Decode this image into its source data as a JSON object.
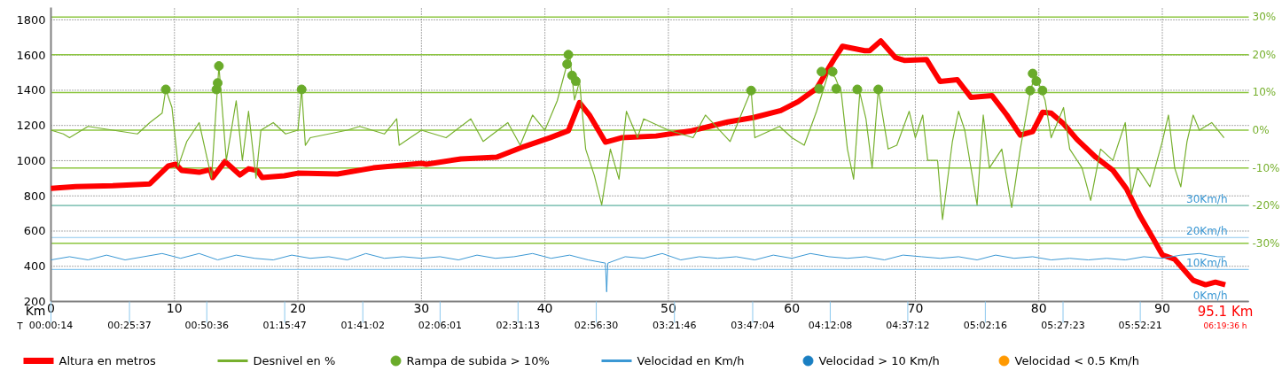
{
  "chart_data": {
    "type": "line",
    "xlabel": "Km",
    "x2label": "T",
    "xlim": [
      0,
      97
    ],
    "xticks": [
      0,
      10,
      20,
      30,
      40,
      50,
      60,
      70,
      80,
      90
    ],
    "x2lim": [
      0.0039,
      6.457
    ],
    "x2ticks": [
      {
        "value": 0.0039,
        "label": "00:00:14"
      },
      {
        "value": 0.4269,
        "label": "00:25:37"
      },
      {
        "value": 0.8433,
        "label": "00:50:36"
      },
      {
        "value": 1.2631,
        "label": "01:15:47"
      },
      {
        "value": 1.6839,
        "label": "01:41:02"
      },
      {
        "value": 2.1003,
        "label": "02:06:01"
      },
      {
        "value": 2.5203,
        "label": "02:31:13"
      },
      {
        "value": 2.9417,
        "label": "02:56:30"
      },
      {
        "value": 3.3628,
        "label": "03:21:46"
      },
      {
        "value": 3.7844,
        "label": "03:47:04"
      },
      {
        "value": 4.2022,
        "label": "04:12:08"
      },
      {
        "value": 4.62,
        "label": "04:37:12"
      },
      {
        "value": 5.0378,
        "label": "05:02:16"
      },
      {
        "value": 5.4564,
        "label": "05:27:23"
      },
      {
        "value": 5.8725,
        "label": "05:52:21"
      }
    ],
    "ylim": [
      200,
      1870
    ],
    "yticks": [
      200,
      400,
      600,
      800,
      1000,
      1200,
      1400,
      1600,
      1800
    ],
    "y2lim": [
      -45.4,
      32.5
    ],
    "y2ticks": [
      {
        "value": 30,
        "label": "30%"
      },
      {
        "value": 20,
        "label": "20%"
      },
      {
        "value": 10,
        "label": "10%"
      },
      {
        "value": 0,
        "label": "0%"
      },
      {
        "value": -10,
        "label": "-10%"
      },
      {
        "value": -20,
        "label": "-20%"
      },
      {
        "value": -30,
        "label": "-30%"
      }
    ],
    "y3lim": [
      0,
      91.9
    ],
    "y3ticks": [
      {
        "value": 0,
        "label": "0Km/h"
      },
      {
        "value": 10,
        "label": "10Km/h"
      },
      {
        "value": 20,
        "label": "20Km/h"
      },
      {
        "value": 30,
        "label": "30Km/h"
      }
    ],
    "grid": true,
    "legend": "bottom",
    "annotations": [
      "95.1 Km",
      "06:19:36 h"
    ],
    "series": [
      {
        "name": "Altura en metros",
        "axis": "y",
        "color": "#ff0000",
        "x": [
          0,
          2,
          5,
          8,
          9.5,
          10.1,
          10.6,
          12,
          12.9,
          13.1,
          14.1,
          15.3,
          16,
          16.7,
          17.1,
          18.9,
          20,
          23.2,
          26.1,
          30,
          30.4,
          33.2,
          36.1,
          38.3,
          40.4,
          41.9,
          42.8,
          43.6,
          44.9,
          46.2,
          49,
          51.9,
          54.8,
          56.9,
          59.1,
          60.5,
          62,
          63.4,
          64.1,
          65.9,
          66.3,
          67.2,
          68.4,
          69.1,
          70.9,
          72,
          73.4,
          74.5,
          76.2,
          77.4,
          78.5,
          79.5,
          80.3,
          81,
          82,
          83.1,
          84.6,
          86,
          87.1,
          88.2,
          89.2,
          90,
          91,
          92.5,
          93.5,
          94.3,
          95.1
        ],
        "values": [
          843,
          853,
          858,
          868,
          970,
          980,
          944,
          934,
          949,
          904,
          995,
          919,
          954,
          944,
          904,
          914,
          929,
          924,
          959,
          985,
          980,
          1010,
          1020,
          1080,
          1130,
          1170,
          1330,
          1260,
          1105,
          1130,
          1140,
          1170,
          1220,
          1245,
          1285,
          1335,
          1410,
          1575,
          1650,
          1625,
          1625,
          1680,
          1585,
          1570,
          1575,
          1450,
          1460,
          1360,
          1370,
          1260,
          1145,
          1165,
          1275,
          1270,
          1210,
          1120,
          1020,
          945,
          840,
          685,
          565,
          465,
          440,
          320,
          295,
          310,
          295
        ]
      },
      {
        "name": "Desnivel en %",
        "axis": "y2",
        "color": "#77b02e",
        "x": [
          0,
          1,
          1.5,
          3,
          5,
          7,
          8,
          9,
          9.3,
          9.8,
          10.3,
          11,
          12,
          13,
          13.6,
          14.2,
          15,
          15.5,
          16,
          16.6,
          17,
          18,
          19,
          20,
          20.3,
          20.6,
          21,
          24,
          25,
          27,
          28,
          28.2,
          30,
          32,
          34,
          35,
          37,
          38,
          39,
          40,
          41,
          42,
          42.4,
          42.8,
          43.3,
          44,
          44.6,
          45.3,
          46,
          46.6,
          47.5,
          48,
          50,
          52,
          53,
          55,
          56.7,
          57,
          59,
          60,
          61,
          62,
          63,
          63.5,
          64,
          64.5,
          65,
          65.5,
          66,
          66.5,
          67,
          67.8,
          68.5,
          69.5,
          70,
          70.6,
          71,
          71.8,
          72.2,
          73,
          73.5,
          74,
          75,
          75.5,
          76,
          77,
          77.8,
          78.5,
          79.3,
          79.7,
          80.5,
          81,
          82,
          82.5,
          83.5,
          84.2,
          85,
          86,
          87,
          87.5,
          88,
          89,
          90,
          90.5,
          91,
          91.5,
          92,
          92.5,
          93,
          94,
          95
        ],
        "values": [
          0,
          -1,
          -2,
          1,
          0,
          -1,
          2,
          4.5,
          10.8,
          6,
          -9.6,
          -3,
          2,
          -12.7,
          17,
          -8,
          7.8,
          -8,
          5,
          -12.7,
          0,
          2,
          -1,
          0,
          10.8,
          -4,
          -2,
          0,
          1,
          -1,
          3,
          -4,
          0,
          -2,
          3,
          -3,
          2,
          -4,
          4,
          0,
          7.8,
          20,
          8,
          13,
          -5,
          -12,
          -19.8,
          -5,
          -13,
          5,
          -2,
          3,
          0,
          -2,
          4,
          -3,
          10.5,
          -2,
          1,
          -2,
          -4,
          5,
          15.5,
          14,
          10,
          -5,
          -13,
          10,
          3,
          -10,
          10.8,
          -5,
          -4,
          5,
          -2,
          4,
          -8,
          -8,
          -23.7,
          -3,
          5,
          0,
          -19.8,
          4,
          -10,
          -5,
          -20.5,
          -5,
          10,
          15,
          8,
          -2,
          6,
          -5,
          -10,
          -18.6,
          -5,
          -8,
          2,
          -17,
          -10,
          -15,
          -3,
          4,
          -10,
          -15,
          -3,
          4,
          0,
          2,
          -2
        ]
      },
      {
        "name": "Rampa de subida > 10%",
        "type": "scatter",
        "marker": "circle",
        "axis": "y2",
        "color": "#6aab2a",
        "x": [
          9.3,
          13.4,
          13.5,
          13.6,
          20.3,
          41.8,
          41.9,
          42.2,
          42.5,
          56.7,
          62.2,
          62.4,
          63.3,
          63.6,
          65.3,
          67,
          79.3,
          79.5,
          79.8,
          80.3
        ],
        "values": [
          10.8,
          10.8,
          12.5,
          17,
          10.8,
          17.5,
          20,
          14.5,
          13,
          10.5,
          11,
          15.5,
          15.5,
          11,
          10.8,
          10.8,
          10.5,
          15,
          13,
          10.5
        ]
      },
      {
        "name": "Velocidad en Km/h",
        "axis": "y3",
        "color": "#3b98d4",
        "x": [
          0,
          1.5,
          3,
          4.5,
          6,
          7.5,
          9,
          10.5,
          12,
          13.5,
          15,
          16.5,
          18,
          19.5,
          21,
          22.5,
          24,
          25.5,
          27,
          28.5,
          30,
          31.5,
          33,
          34.5,
          36,
          37.5,
          39,
          40.5,
          42,
          43.5,
          44.9,
          45,
          45.1,
          46.5,
          48,
          49.5,
          51,
          52.5,
          54,
          55.5,
          57,
          58.5,
          60,
          61.5,
          63,
          64.5,
          66,
          67.5,
          69,
          70.5,
          72,
          73.5,
          75,
          76.5,
          78,
          79.5,
          81,
          82.5,
          84,
          85.5,
          87,
          88.5,
          90,
          91.5,
          93,
          94.5,
          95.1
        ],
        "values": [
          13,
          14,
          13,
          14.5,
          13,
          14,
          15,
          13.5,
          15,
          13,
          14.5,
          13.5,
          13,
          14.5,
          13.5,
          14,
          13,
          15,
          13.5,
          14,
          13.5,
          14,
          13,
          14.5,
          13.5,
          14,
          15,
          13.5,
          14.5,
          13,
          12,
          3,
          12,
          14,
          13.5,
          15,
          13,
          14,
          13.5,
          14,
          13,
          14.5,
          13.5,
          15,
          14,
          13.5,
          14,
          13,
          14.5,
          14,
          13.5,
          14,
          13,
          14.5,
          13.5,
          14,
          13,
          13.5,
          13,
          13.5,
          13,
          14,
          13.5,
          14.5,
          15,
          14,
          14
        ]
      },
      {
        "name": "Velocidad > 10 Km/h",
        "type": "scatter",
        "marker": "circle",
        "axis": "y3",
        "color": "#1a7fc2"
      },
      {
        "name": "Velocidad < 0.5 Km/h",
        "type": "scatter",
        "marker": "circle",
        "axis": "y3",
        "color": "#ff9900"
      }
    ]
  }
}
